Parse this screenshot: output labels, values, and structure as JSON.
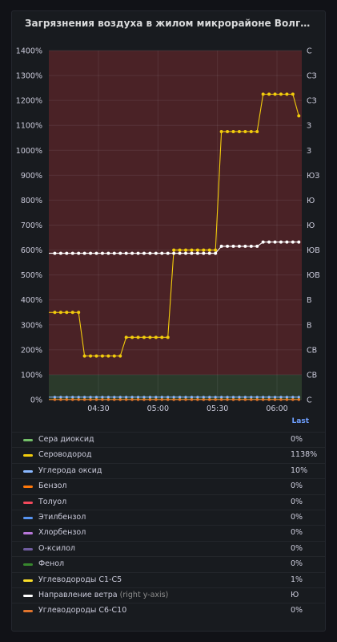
{
  "panel": {
    "title": "Загрязнения воздуха в жилом микрорайоне Волгарь, г. Самар...",
    "legend_header": "Last"
  },
  "chart_data": {
    "type": "line",
    "y_left": {
      "ticks": [
        "1400%",
        "1300%",
        "1200%",
        "1100%",
        "1000%",
        "900%",
        "800%",
        "700%",
        "600%",
        "500%",
        "400%",
        "300%",
        "200%",
        "100%",
        "0%"
      ],
      "range": [
        0,
        1400
      ]
    },
    "y_right": {
      "ticks": [
        "С",
        "СЗ",
        "СЗ",
        "З",
        "З",
        "ЮЗ",
        "Ю",
        "Ю",
        "ЮВ",
        "ЮВ",
        "В",
        "В",
        "СВ",
        "СВ",
        "С"
      ]
    },
    "x_ticks": [
      {
        "t": 25,
        "label": "04:30"
      },
      {
        "t": 55,
        "label": "05:00"
      },
      {
        "t": 85,
        "label": "05:30"
      },
      {
        "t": 115,
        "label": "06:00"
      }
    ],
    "x_range": [
      0,
      127.5
    ],
    "thresholds": [
      {
        "from": 0,
        "to": 100,
        "color": "#2b3a2b"
      },
      {
        "from": 100,
        "to": 1400,
        "color": "#4a2226"
      }
    ],
    "series": [
      {
        "name": "Сероводород",
        "color": "#f2cc0c",
        "x": [
          0,
          3,
          6,
          9,
          12,
          15,
          18,
          21,
          24,
          27,
          30,
          33,
          36,
          39,
          42,
          45,
          48,
          51,
          54,
          57,
          60,
          63,
          66,
          69,
          72,
          75,
          78,
          81,
          84,
          87,
          90,
          93,
          96,
          99,
          102,
          105,
          108,
          111,
          114,
          117,
          120,
          123,
          126
        ],
        "values": [
          350,
          350,
          350,
          350,
          350,
          350,
          175,
          175,
          175,
          175,
          175,
          175,
          175,
          250,
          250,
          250,
          250,
          250,
          250,
          250,
          250,
          600,
          600,
          600,
          600,
          600,
          600,
          600,
          600,
          1075,
          1075,
          1075,
          1075,
          1075,
          1075,
          1075,
          1225,
          1225,
          1225,
          1225,
          1225,
          1225,
          1138
        ],
        "markers": [
          3,
          6,
          9,
          15,
          18,
          21,
          24,
          27,
          30,
          33,
          36,
          39,
          42,
          45,
          48,
          51,
          57,
          60,
          63,
          66,
          69,
          72,
          75,
          78,
          81,
          84,
          87,
          90,
          93,
          96,
          99,
          102,
          105,
          108,
          111,
          114,
          117,
          120,
          123,
          126
        ],
        "marker_every": 3
      },
      {
        "name": "Направление ветра (right y-axis)",
        "color": "#ffffff",
        "values_x": [
          0,
          3,
          6,
          9,
          12,
          15,
          18,
          21,
          24,
          27,
          30,
          33,
          36,
          39,
          42,
          45,
          48,
          51,
          54,
          57,
          60,
          63,
          66,
          69,
          72,
          75,
          78,
          81,
          84,
          87,
          90,
          93,
          96,
          99,
          102,
          105,
          108,
          111,
          114,
          117,
          120,
          123,
          126
        ],
        "values": [
          587,
          587,
          587,
          587,
          587,
          587,
          587,
          587,
          587,
          587,
          587,
          587,
          587,
          587,
          587,
          587,
          587,
          587,
          587,
          587,
          587,
          587,
          587,
          587,
          587,
          587,
          587,
          587,
          587,
          615,
          615,
          615,
          615,
          615,
          615,
          615,
          632,
          632,
          632,
          632,
          632,
          632,
          632
        ]
      },
      {
        "name": "Углерода оксид",
        "color": "#8ab8ff",
        "level": 10
      },
      {
        "name": "Углеводороды C1-C5",
        "color": "#fade2a",
        "level": 1
      },
      {
        "name": "Бензол",
        "color": "#ff780a",
        "level": 0
      },
      {
        "name": "Углеводороды C6-C10",
        "color": "#e0752d",
        "level": 0
      }
    ],
    "grid": true
  },
  "legend": [
    {
      "name": "Сера диоксид",
      "note": "",
      "color": "#73bf69",
      "value": "0%"
    },
    {
      "name": "Сероводород",
      "note": "",
      "color": "#f2cc0c",
      "value": "1138%"
    },
    {
      "name": "Углерода оксид",
      "note": "",
      "color": "#8ab8ff",
      "value": "10%"
    },
    {
      "name": "Бензол",
      "note": "",
      "color": "#ff780a",
      "value": "0%"
    },
    {
      "name": "Толуол",
      "note": "",
      "color": "#f2495c",
      "value": "0%"
    },
    {
      "name": "Этилбензол",
      "note": "",
      "color": "#5794f2",
      "value": "0%"
    },
    {
      "name": "Хлорбензол",
      "note": "",
      "color": "#b877d9",
      "value": "0%"
    },
    {
      "name": "О-ксилол",
      "note": "",
      "color": "#705da0",
      "value": "0%"
    },
    {
      "name": "Фенол",
      "note": "",
      "color": "#37872d",
      "value": "0%"
    },
    {
      "name": "Углеводороды C1-C5",
      "note": "",
      "color": "#fade2a",
      "value": "1%"
    },
    {
      "name": "Направление ветра",
      "note": "(right y-axis)",
      "color": "#ffffff",
      "value": "Ю"
    },
    {
      "name": "Углеводороды C6-C10",
      "note": "",
      "color": "#e0752d",
      "value": "0%"
    }
  ]
}
